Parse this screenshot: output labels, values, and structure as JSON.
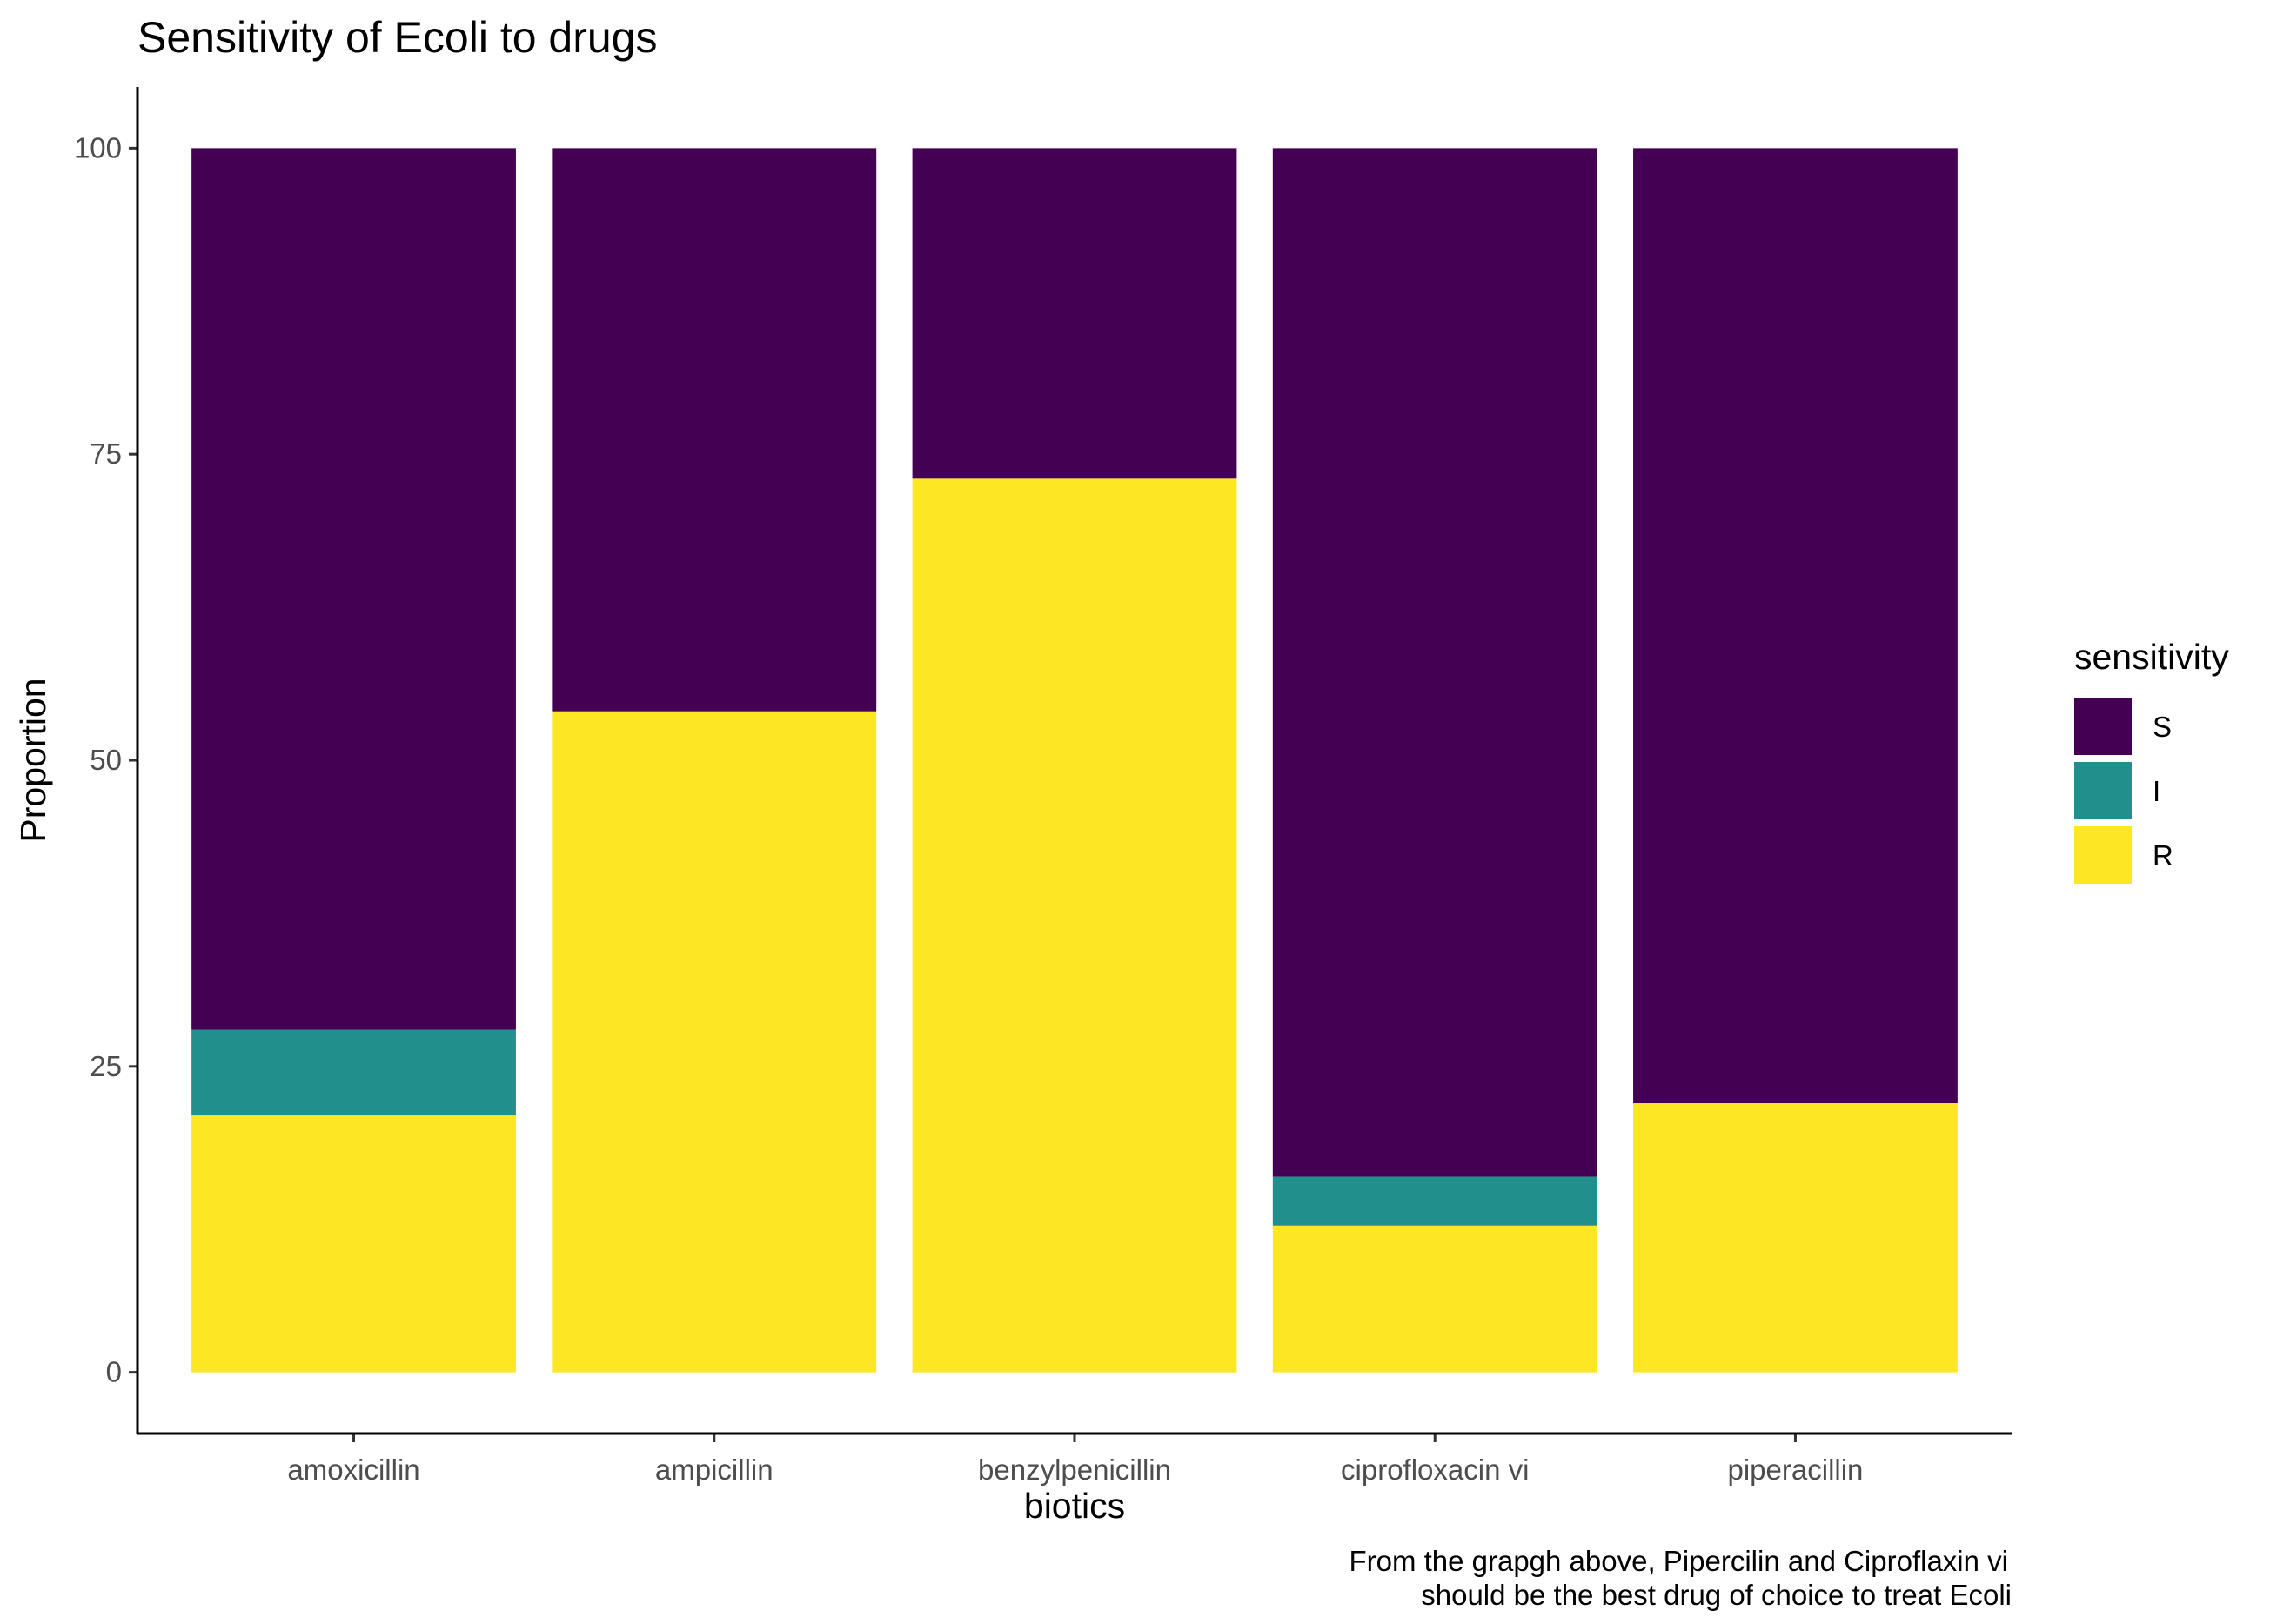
{
  "chart_data": {
    "type": "bar",
    "stacked": true,
    "title": "Sensitivity of Ecoli to drugs",
    "xlabel": "biotics",
    "ylabel": "Proportion",
    "ylim": [
      -5,
      105
    ],
    "yticks": [
      0,
      25,
      50,
      75,
      100
    ],
    "categories": [
      "amoxicillin",
      "ampicillin",
      "benzylpenicillin",
      "ciprofloxacin vi",
      "piperacillin"
    ],
    "series": [
      {
        "name": "R",
        "color": "#FDE725",
        "values": [
          21,
          54,
          73,
          12,
          22
        ]
      },
      {
        "name": "I",
        "color": "#21908C",
        "values": [
          7,
          0,
          0,
          4,
          0
        ]
      },
      {
        "name": "S",
        "color": "#440154",
        "values": [
          72,
          46,
          27,
          84,
          78
        ]
      }
    ],
    "legend": {
      "title": "sensitivity",
      "position": "right",
      "order": [
        "S",
        "I",
        "R"
      ]
    },
    "grid": false,
    "caption": [
      "From the grapgh above, Pipercilin and Ciproflaxin vi",
      "should be the best drug of choice to treat Ecoli"
    ]
  }
}
